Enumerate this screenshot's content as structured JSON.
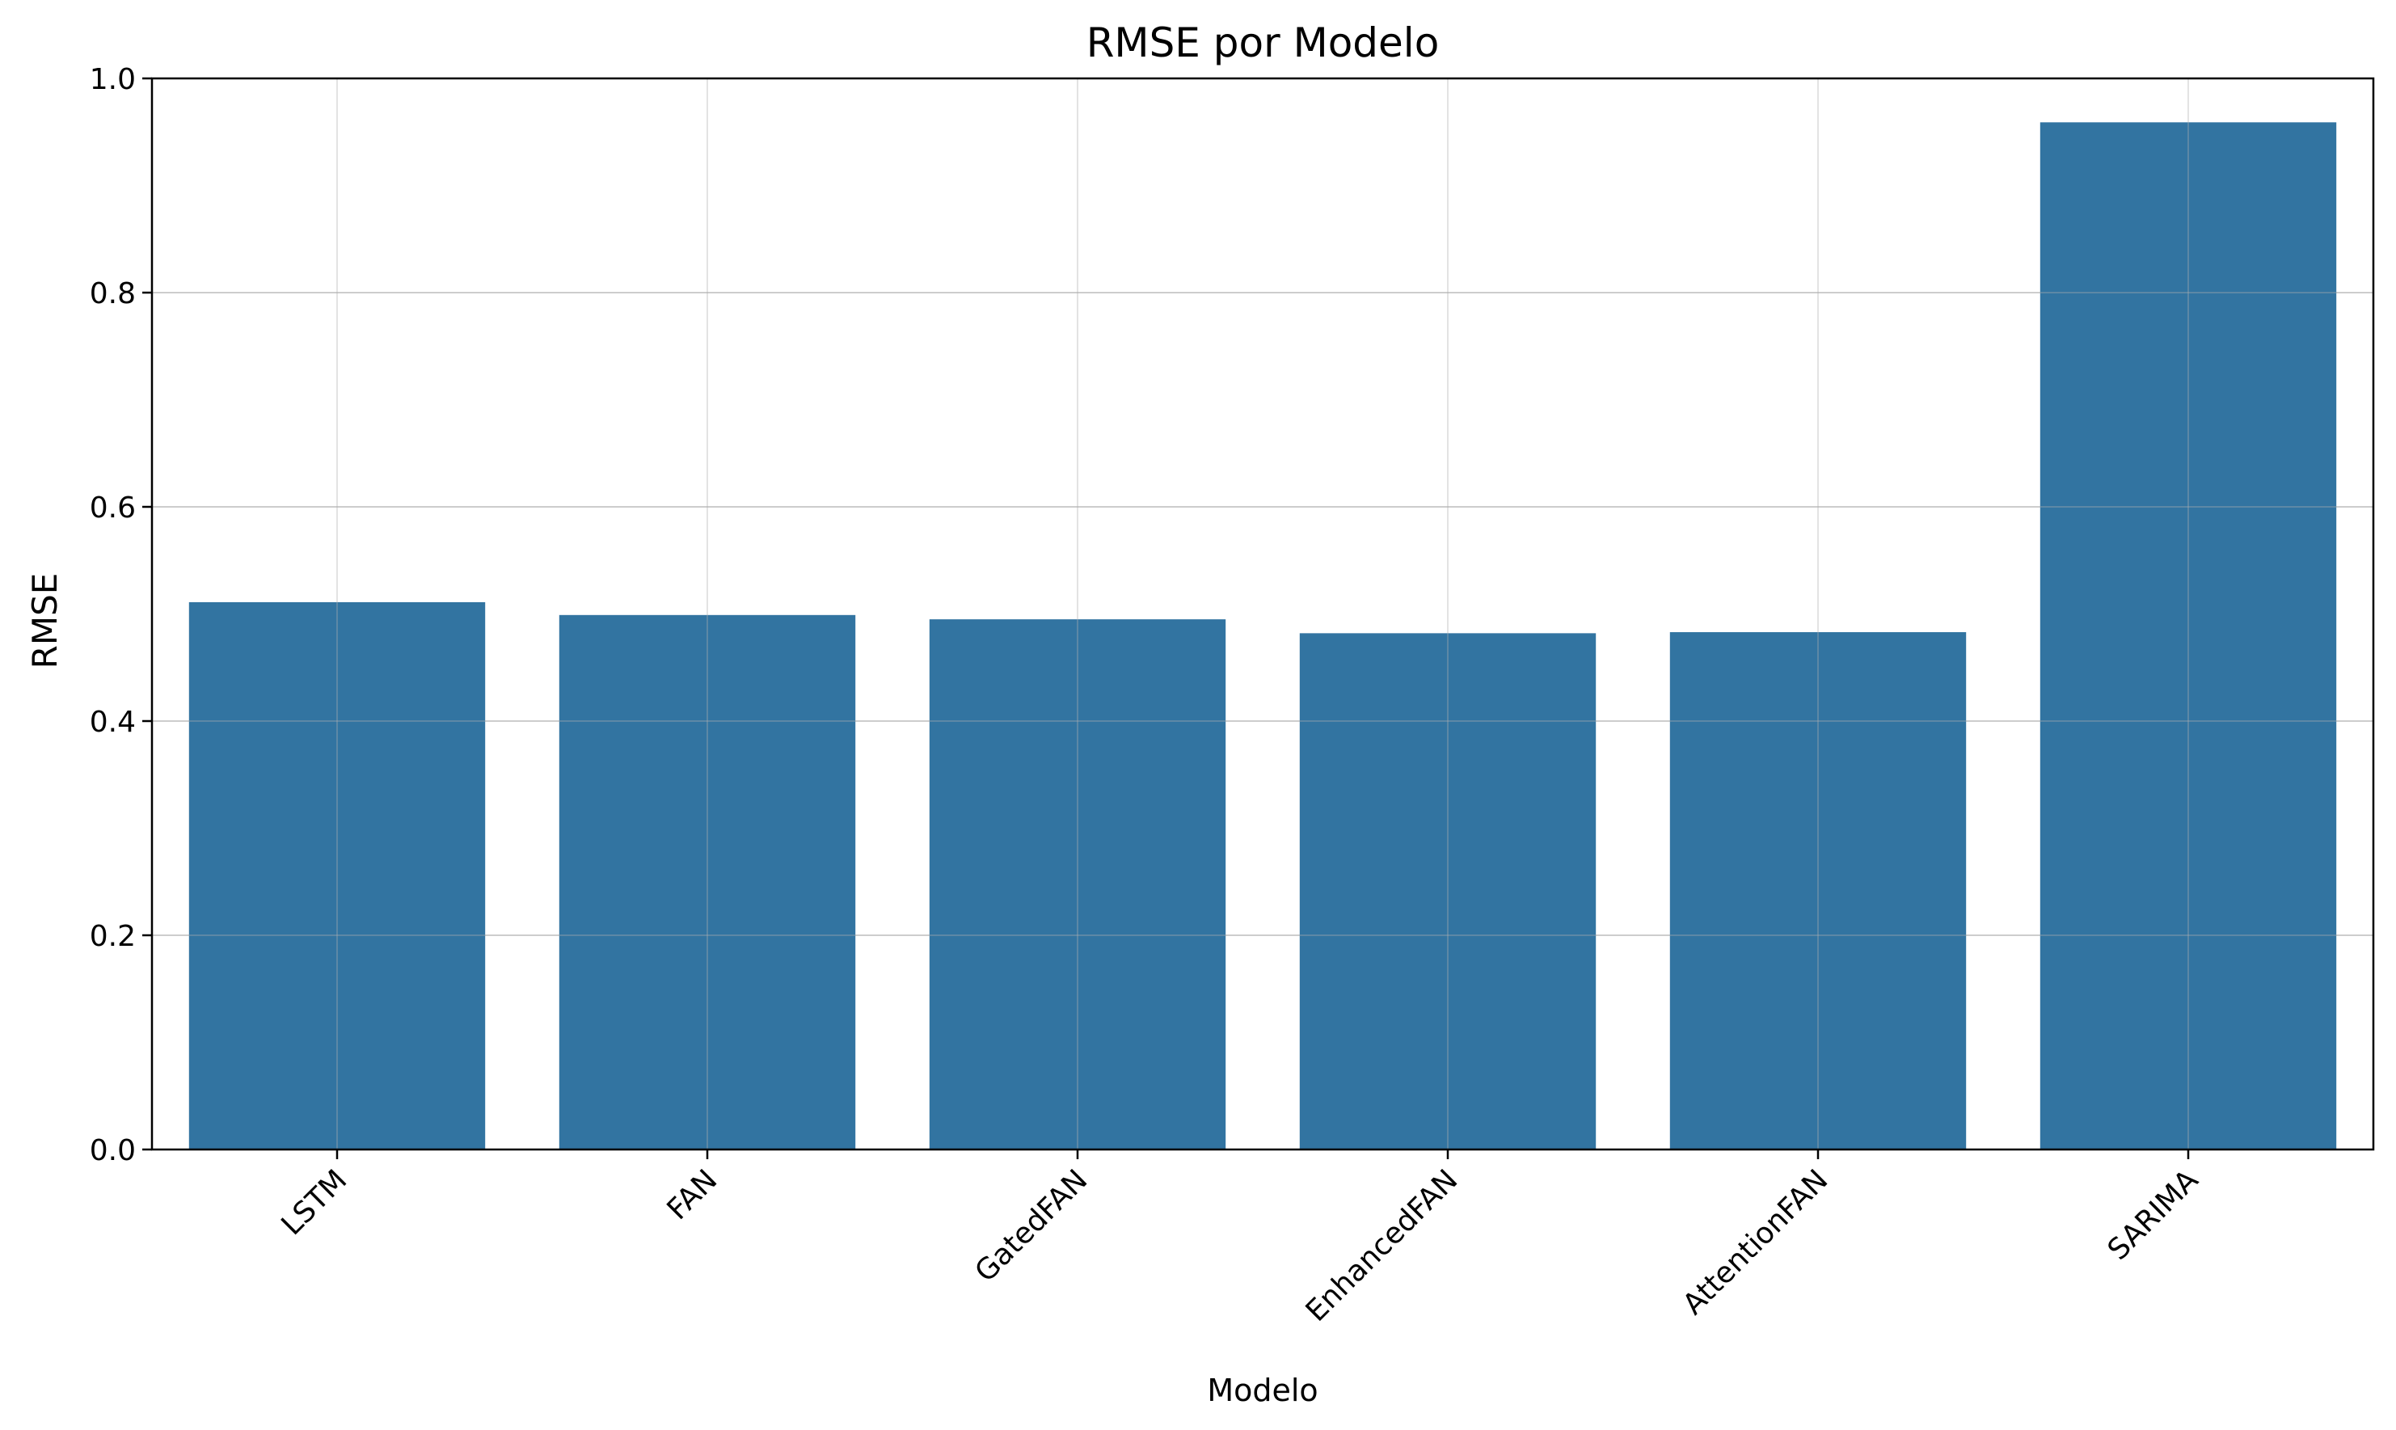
{
  "chart_data": {
    "type": "bar",
    "title": "RMSE por Modelo",
    "xlabel": "Modelo",
    "ylabel": "RMSE",
    "categories": [
      "LSTM",
      "FAN",
      "GatedFAN",
      "EnhancedFAN",
      "AttentionFAN",
      "SARIMA"
    ],
    "values": [
      0.511,
      0.499,
      0.495,
      0.482,
      0.483,
      0.959
    ],
    "ylim": [
      0,
      1.0
    ],
    "yticks": [
      "0.0",
      "0.2",
      "0.4",
      "0.6",
      "0.8",
      "1.0"
    ],
    "grid": true,
    "x_tick_rotation": 45,
    "bar_color": "#3274a1",
    "grid_color": "#dddddd"
  }
}
